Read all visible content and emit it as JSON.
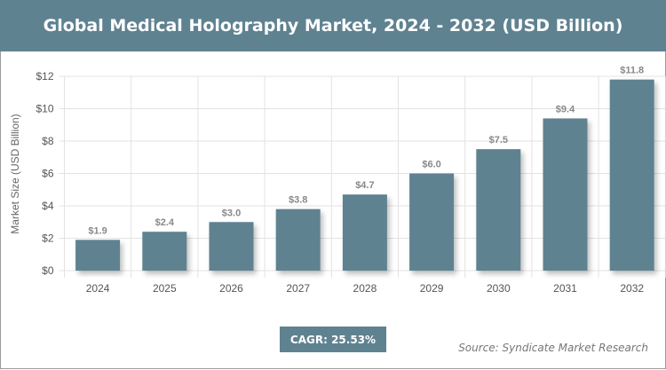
{
  "title": "Global Medical Holography Market, 2024 - 2032 (USD Billion)",
  "cagr": "CAGR: 25.53%",
  "source": "Source: Syndicate Market Research",
  "colors": {
    "bar": "#5f8291",
    "header": "#5f8291"
  },
  "chart_data": {
    "type": "bar",
    "title": "Global Medical Holography Market, 2024 - 2032 (USD Billion)",
    "xlabel": "",
    "ylabel": "Market Size (USD Billion)",
    "categories": [
      "2024",
      "2025",
      "2026",
      "2027",
      "2028",
      "2029",
      "2030",
      "2031",
      "2032"
    ],
    "values": [
      1.9,
      2.4,
      3.0,
      3.8,
      4.7,
      6.0,
      7.5,
      9.4,
      11.8
    ],
    "data_labels": [
      "$1.9",
      "$2.4",
      "$3.0",
      "$3.8",
      "$4.7",
      "$6.0",
      "$7.5",
      "$9.4",
      "$11.8"
    ],
    "ylim": [
      0,
      12
    ],
    "yticks": [
      0,
      2,
      4,
      6,
      8,
      10,
      12
    ],
    "ytick_labels": [
      "$0",
      "$2",
      "$4",
      "$6",
      "$8",
      "$10",
      "$12"
    ],
    "grid": true,
    "legend": "none"
  }
}
